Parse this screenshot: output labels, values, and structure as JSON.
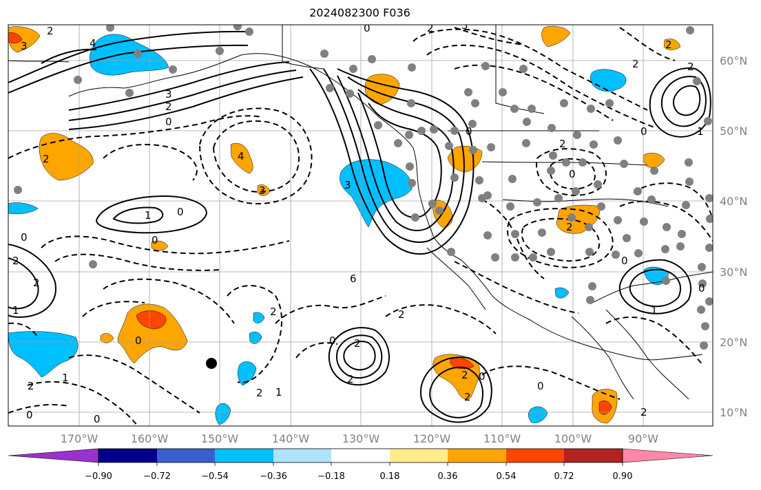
{
  "title": "2024082300 F036",
  "lat_labels": [
    "60°N",
    "50°N",
    "40°N",
    "30°N",
    "20°N",
    "10°N"
  ],
  "lon_labels": [
    "170°W",
    "160°W",
    "150°W",
    "140°W",
    "130°W",
    "120°W",
    "110°W",
    "100°W",
    "90°W"
  ],
  "colorbar": {
    "colors": [
      "#9932cc",
      "#00008b",
      "#3a5fcd",
      "#00bfff",
      "#b0e2ff",
      "#ffffff",
      "#ffec8b",
      "#ffa500",
      "#ff4500",
      "#b22222",
      "#ff88aa"
    ],
    "tick_labels": [
      "−0.90",
      "−0.72",
      "−0.54",
      "−0.36",
      "−0.18",
      "0.18",
      "0.36",
      "0.54",
      "0.72",
      "0.90"
    ]
  },
  "contour_labels": [
    "2",
    "3",
    "4",
    "2",
    "0",
    "3",
    "0",
    "3",
    "2",
    "1",
    "0",
    "2",
    "2",
    "1",
    "0",
    "1",
    "0",
    "2",
    "2",
    "0",
    "4",
    "3",
    "0",
    "1",
    "2",
    "2",
    "0",
    "3",
    "2",
    "2",
    "2",
    "2",
    "1",
    "1",
    "0",
    "2",
    "0",
    "6",
    "0",
    "2",
    "2",
    "2",
    "2",
    "0",
    "0",
    "2",
    "0",
    "2",
    "0",
    "0"
  ]
}
